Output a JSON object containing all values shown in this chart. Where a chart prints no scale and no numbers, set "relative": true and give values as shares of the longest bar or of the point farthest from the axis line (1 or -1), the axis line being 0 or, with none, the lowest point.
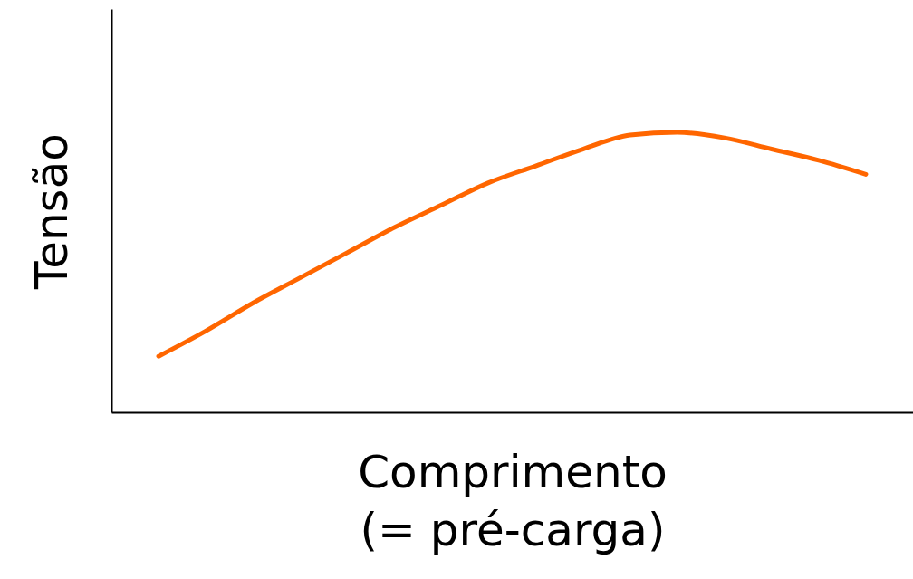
{
  "chart_data": {
    "type": "line",
    "relative": true,
    "xlabel": "Comprimento\n(= pré-carga)",
    "ylabel": "Tensão",
    "grid": false,
    "marker": "none",
    "line_style": "solid",
    "categories": [
      null,
      null,
      null,
      null,
      null,
      null,
      null,
      null,
      null,
      null,
      null,
      null,
      null,
      null,
      null,
      null
    ],
    "series": [
      {
        "color": "#ff6600",
        "values": [
          0.2,
          0.29,
          0.39,
          0.48,
          0.57,
          0.66,
          0.74,
          0.82,
          0.88,
          0.94,
          0.99,
          1.0,
          0.98,
          0.94,
          0.9,
          0.85
        ]
      }
    ]
  }
}
